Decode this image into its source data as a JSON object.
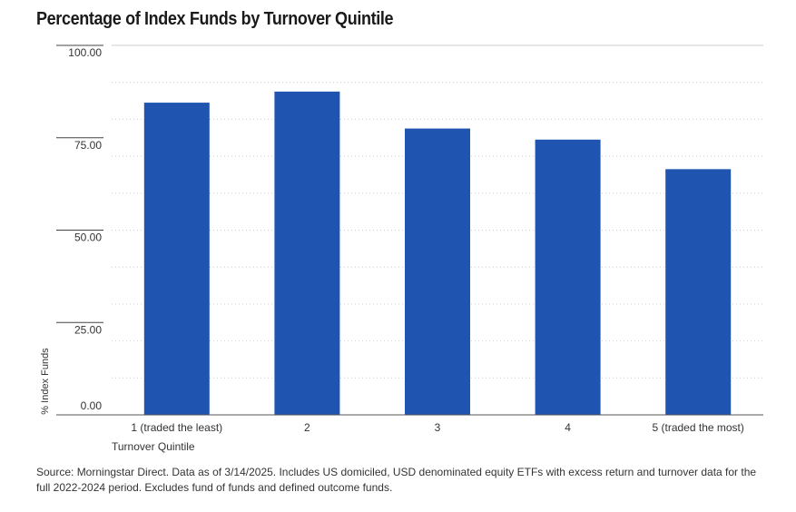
{
  "title": "Percentage of Index Funds by Turnover Quintile",
  "source": "Source: Morningstar Direct. Data as of 3/14/2025. Includes US domiciled, USD denominated equity ETFs with excess return and turnover data for the full 2022-2024 period. Excludes fund of funds and defined outcome funds.",
  "colors": {
    "bar": "#1f55b0",
    "grid": "#cccccc",
    "axis": "#999999"
  },
  "chart_data": {
    "type": "bar",
    "title": "Percentage of Index Funds by Turnover Quintile",
    "xlabel": "Turnover Quintile",
    "ylabel": "% Index Funds",
    "categories": [
      "1 (traded the least)",
      "2",
      "3",
      "4",
      "5 (traded the most)"
    ],
    "values": [
      84.5,
      87.5,
      77.5,
      74.5,
      66.5
    ],
    "ylim": [
      0,
      100
    ],
    "yticks": [
      0,
      25,
      50,
      75,
      100
    ],
    "ytick_labels": [
      "0.00",
      "25.00",
      "50.00",
      "75.00",
      "100.00"
    ],
    "grid": true,
    "legend": "none"
  }
}
